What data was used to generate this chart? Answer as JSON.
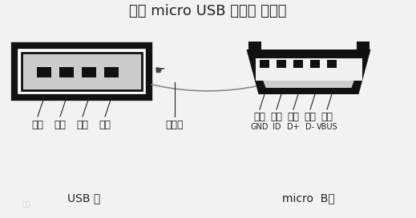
{
  "title": "手机 micro USB 数据线 接线图",
  "background_color": "#f2f2f2",
  "usb_label": "USB 端",
  "micro_label": "micro  B端",
  "usb_pins_labels": [
    "黑线",
    "绿线",
    "白线",
    "红线"
  ],
  "usb_extra_label": "屏蔽线",
  "micro_pins_labels": [
    "黑线",
    "空端",
    "绿线",
    "白线",
    "红线"
  ],
  "micro_pins_sublabels": [
    "GND",
    "ID",
    "D+",
    "D-",
    "VBUS"
  ],
  "line_color": "#222222",
  "connector_border": "#111111",
  "connector_fill": "#ffffff",
  "pin_color": "#111111",
  "inner_fill": "#cccccc",
  "cable_color": "#888888",
  "watermark_color": "#bbbbbb"
}
